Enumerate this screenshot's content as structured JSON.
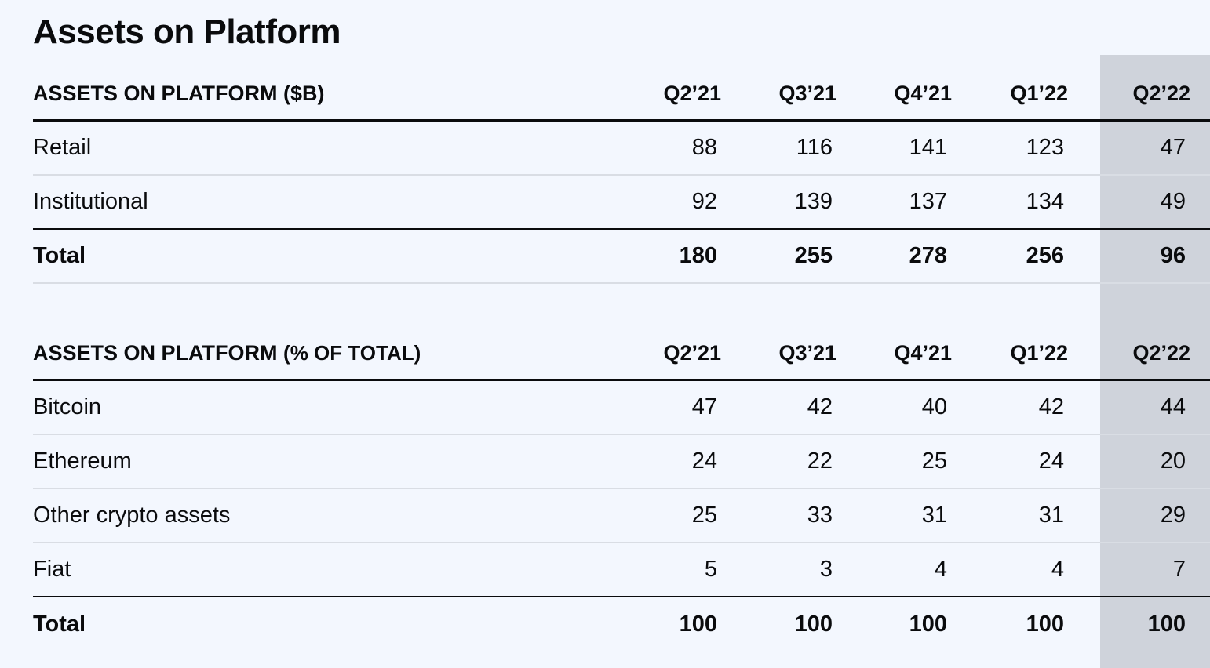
{
  "title": "Assets on Platform",
  "tables": [
    {
      "header": "ASSETS ON PLATFORM ($B)",
      "header_main": "ASSETS ON PLATFORM",
      "header_sub": "($B)",
      "periods": [
        "Q2’21",
        "Q3’21",
        "Q4’21",
        "Q1’22",
        "Q2’22"
      ],
      "rows": [
        {
          "label": "Retail",
          "values": [
            "88",
            "116",
            "141",
            "123",
            "47"
          ]
        },
        {
          "label": "Institutional",
          "values": [
            "92",
            "139",
            "137",
            "134",
            "49"
          ]
        },
        {
          "label": "Total",
          "values": [
            "180",
            "255",
            "278",
            "256",
            "96"
          ],
          "total": true
        }
      ]
    },
    {
      "header": "ASSETS ON PLATFORM (% OF TOTAL)",
      "header_main": "ASSETS ON PLATFORM",
      "header_sub": "(% OF TOTAL)",
      "periods": [
        "Q2’21",
        "Q3’21",
        "Q4’21",
        "Q1’22",
        "Q2’22"
      ],
      "rows": [
        {
          "label": "Bitcoin",
          "values": [
            "47",
            "42",
            "40",
            "42",
            "44"
          ]
        },
        {
          "label": "Ethereum",
          "values": [
            "24",
            "22",
            "25",
            "24",
            "20"
          ]
        },
        {
          "label": "Other crypto assets",
          "values": [
            "25",
            "33",
            "31",
            "31",
            "29"
          ]
        },
        {
          "label": "Fiat",
          "values": [
            "5",
            "3",
            "4",
            "4",
            "7"
          ]
        },
        {
          "label": "Total",
          "values": [
            "100",
            "100",
            "100",
            "100",
            "100"
          ],
          "total": true
        }
      ]
    }
  ],
  "colors": {
    "background": "#f3f7fe",
    "highlight_column": "#cfd3db",
    "text": "#0a0b0d",
    "rule_dark": "#0a0b0d",
    "rule_light": "#d9dde4"
  }
}
